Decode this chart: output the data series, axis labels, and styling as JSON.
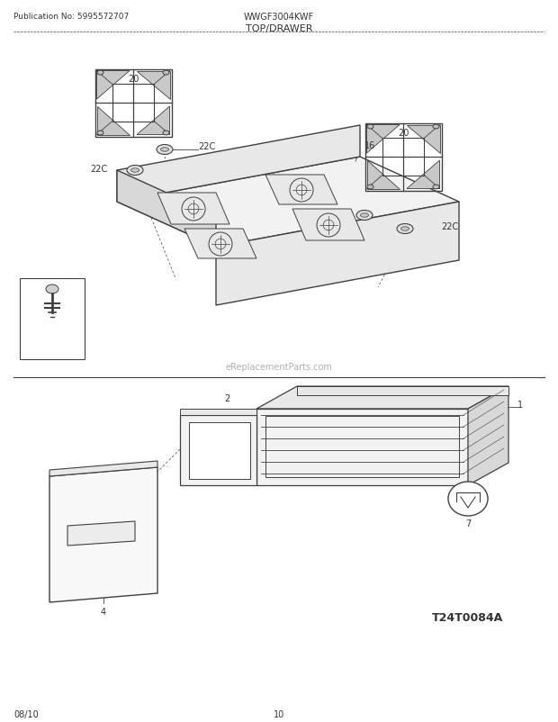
{
  "title": "TOP/DRAWER",
  "pub_no": "Publication No: 5995572707",
  "model": "WWGF3004KWF",
  "date": "08/10",
  "page": "10",
  "watermark": "eReplacementParts.com",
  "diagram_id": "T24T0084A",
  "bg_color": "#ffffff",
  "lc": "#404040",
  "tc": "#333333",
  "gray1": "#f2f2f2",
  "gray2": "#e8e8e8",
  "gray3": "#d8d8d8"
}
